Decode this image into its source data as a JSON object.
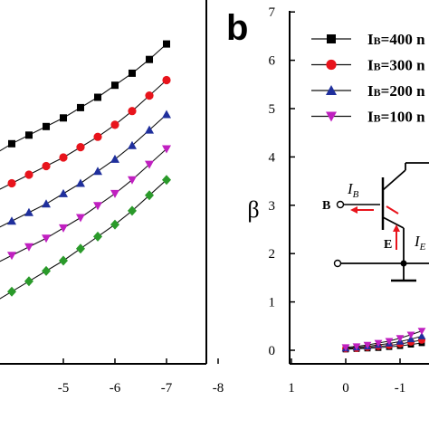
{
  "chart_data": [
    {
      "panel": "a",
      "type": "line",
      "xlim": [
        -3,
        -8
      ],
      "x_ticks": [
        "-5",
        "-6",
        "-7",
        "-8"
      ],
      "x_tick_values": [
        -5,
        -6,
        -7,
        -8
      ],
      "ylim": [
        0,
        1
      ],
      "x": [
        -3.0,
        -3.333,
        -3.667,
        -4.0,
        -4.333,
        -4.667,
        -5.0,
        -5.333,
        -5.667,
        -6.0,
        -6.333,
        -6.667,
        -7.0
      ],
      "series": [
        {
          "marker": "square",
          "color": "#000000",
          "values": [
            0.56,
            0.585,
            0.61,
            0.64,
            0.665,
            0.69,
            0.715,
            0.745,
            0.775,
            0.81,
            0.845,
            0.885,
            0.93
          ]
        },
        {
          "marker": "circle",
          "color": "#e8141c",
          "values": [
            0.45,
            0.475,
            0.5,
            0.525,
            0.55,
            0.575,
            0.6,
            0.63,
            0.66,
            0.695,
            0.735,
            0.78,
            0.825
          ]
        },
        {
          "marker": "triangle-up",
          "color": "#1f2f9c",
          "values": [
            0.34,
            0.365,
            0.39,
            0.415,
            0.44,
            0.465,
            0.495,
            0.525,
            0.56,
            0.595,
            0.635,
            0.68,
            0.725
          ]
        },
        {
          "marker": "triangle-down",
          "color": "#c020c0",
          "values": [
            0.24,
            0.265,
            0.29,
            0.315,
            0.34,
            0.365,
            0.395,
            0.425,
            0.46,
            0.495,
            0.535,
            0.58,
            0.625
          ]
        },
        {
          "marker": "diamond",
          "color": "#2a9a2a",
          "values": [
            0.12,
            0.15,
            0.18,
            0.21,
            0.24,
            0.27,
            0.3,
            0.335,
            0.37,
            0.405,
            0.445,
            0.49,
            0.535
          ]
        }
      ]
    },
    {
      "panel": "b",
      "panel_label": "b",
      "type": "line",
      "ylabel": "β",
      "xlim": [
        1,
        -1.8
      ],
      "x_ticks": [
        "1",
        "0",
        "-1"
      ],
      "x_tick_values": [
        1,
        0,
        -1
      ],
      "ylim": [
        -0.3,
        7
      ],
      "y_ticks": [
        "0",
        "1",
        "2",
        "3",
        "4",
        "5",
        "6",
        "7"
      ],
      "y_tick_values": [
        0,
        1,
        2,
        3,
        4,
        5,
        6,
        7
      ],
      "legend": [
        {
          "main": "I",
          "sub": "B",
          "rest": "=400 n",
          "marker": "square",
          "color": "#000000"
        },
        {
          "main": "I",
          "sub": "B",
          "rest": "=300 n",
          "marker": "circle",
          "color": "#e8141c"
        },
        {
          "main": "I",
          "sub": "B",
          "rest": "=200 n",
          "marker": "triangle-up",
          "color": "#1f2f9c"
        },
        {
          "main": "I",
          "sub": "B",
          "rest": "=100 n",
          "marker": "triangle-down",
          "color": "#c020c0"
        }
      ],
      "x": [
        0,
        -0.2,
        -0.4,
        -0.6,
        -0.8,
        -1.0,
        -1.2,
        -1.4
      ],
      "series": [
        {
          "name": "IB=400 n",
          "marker": "square",
          "color": "#000000",
          "values": [
            0.02,
            0.03,
            0.04,
            0.05,
            0.07,
            0.09,
            0.12,
            0.15
          ]
        },
        {
          "name": "IB=300 n",
          "marker": "circle",
          "color": "#e8141c",
          "values": [
            0.03,
            0.04,
            0.06,
            0.08,
            0.1,
            0.13,
            0.17,
            0.21
          ]
        },
        {
          "name": "IB=200 n",
          "marker": "triangle-up",
          "color": "#1f2f9c",
          "values": [
            0.04,
            0.06,
            0.08,
            0.11,
            0.14,
            0.18,
            0.23,
            0.29
          ]
        },
        {
          "name": "IB=100 n",
          "marker": "triangle-down",
          "color": "#c020c0",
          "values": [
            0.06,
            0.08,
            0.11,
            0.15,
            0.19,
            0.25,
            0.32,
            0.4
          ]
        }
      ],
      "inset_circuit": {
        "base_label": "B",
        "emitter_label": "E",
        "current_b_main": "I",
        "current_b_sub": "B",
        "current_e_main": "I",
        "current_e_sub": "E"
      }
    }
  ]
}
